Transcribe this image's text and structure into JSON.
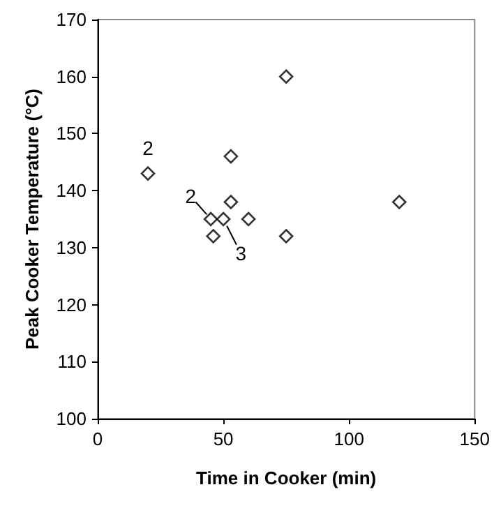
{
  "chart_data": {
    "type": "scatter",
    "xlabel": "Time in Cooker (min)",
    "ylabel": "Peak Cooker Temperature (°C)",
    "x": [
      20,
      45,
      46,
      50,
      53,
      53,
      60,
      75,
      75,
      120
    ],
    "values": [
      143,
      135,
      132,
      135,
      138,
      146,
      135,
      160,
      132,
      138
    ],
    "color": "#000000",
    "marker": "diamond",
    "grid": false,
    "xlim": [
      0,
      150
    ],
    "xticks": [
      0,
      50,
      100,
      150
    ],
    "ylim": [
      100,
      170
    ],
    "yticks": [
      100,
      110,
      120,
      130,
      140,
      150,
      160,
      170
    ],
    "annotations": [
      {
        "text": "2",
        "x": 20,
        "y": 143
      },
      {
        "text": "2",
        "x": 45,
        "y": 135
      },
      {
        "text": "3",
        "x": 50,
        "y": 135
      }
    ]
  }
}
